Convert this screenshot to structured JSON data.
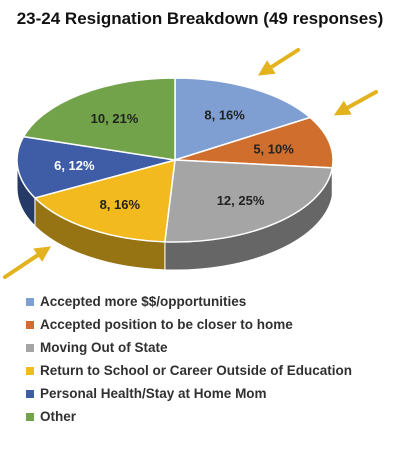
{
  "chart_data": {
    "type": "pie",
    "title": "23-24 Resignation Breakdown (49 responses)",
    "three_d": true,
    "categories": [
      "Accepted more $$/opportunities",
      "Accepted position to be closer to home",
      "Moving Out of State",
      "Return to School or Career Outside of Education",
      "Personal Health/Stay at Home Mom",
      "Other"
    ],
    "values": [
      8,
      5,
      12,
      8,
      6,
      10
    ],
    "percents": [
      16,
      10,
      25,
      16,
      12,
      21
    ],
    "data_labels": [
      "8, 16%",
      "5, 10%",
      "12, 25%",
      "8, 16%",
      "6, 12%",
      "10, 21%"
    ],
    "colors": [
      "#7F9FD3",
      "#D06E2E",
      "#A5A5A5",
      "#F2BA1E",
      "#3E5DA6",
      "#72A34A"
    ],
    "label_colors": [
      "#222222",
      "#222222",
      "#222222",
      "#222222",
      "#ffffff",
      "#222222"
    ],
    "legend_position": "bottom",
    "callout_arrows": {
      "color": "#E3B21F",
      "highlighted_categories": [
        "Accepted more $$/opportunities",
        "Accepted position to be closer to home",
        "Return to School or Career Outside of Education"
      ]
    }
  }
}
